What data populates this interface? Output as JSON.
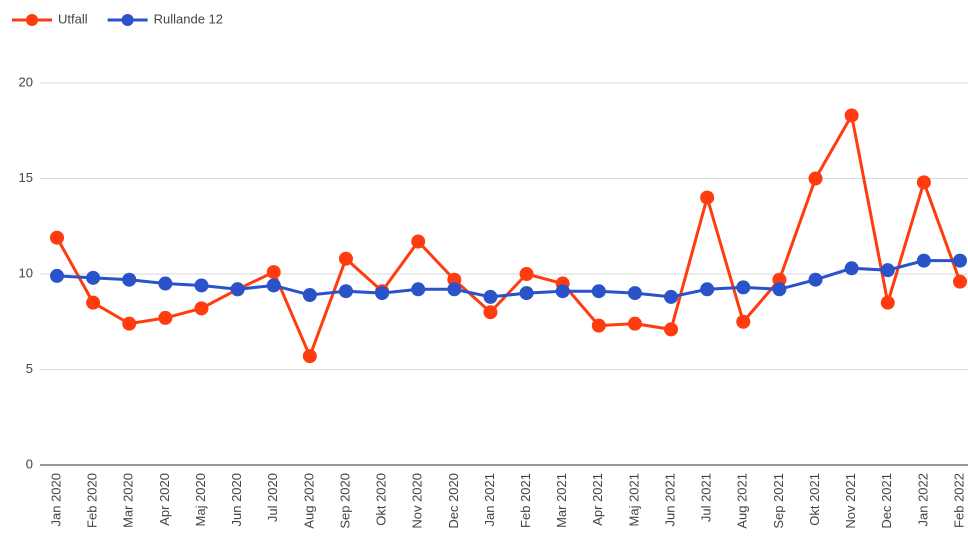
{
  "chart_data": {
    "type": "line",
    "categories": [
      "Jan 2020",
      "Feb 2020",
      "Mar 2020",
      "Apr 2020",
      "Maj 2020",
      "Jun 2020",
      "Jul 2020",
      "Aug 2020",
      "Sep 2020",
      "Okt 2020",
      "Nov 2020",
      "Dec 2020",
      "Jan 2021",
      "Feb 2021",
      "Mar 2021",
      "Apr 2021",
      "Maj 2021",
      "Jun 2021",
      "Jul 2021",
      "Aug 2021",
      "Sep 2021",
      "Okt 2021",
      "Nov 2021",
      "Dec 2021",
      "Jan 2022",
      "Feb 2022"
    ],
    "series": [
      {
        "name": "Utfall",
        "color": "#ff3b0f",
        "values": [
          11.9,
          8.5,
          7.4,
          7.7,
          8.2,
          9.2,
          10.1,
          5.7,
          10.8,
          9.1,
          11.7,
          9.7,
          8.0,
          10.0,
          9.5,
          7.3,
          7.4,
          7.1,
          14.0,
          7.5,
          9.7,
          15.0,
          18.3,
          8.5,
          14.8,
          9.6
        ]
      },
      {
        "name": "Rullande 12",
        "color": "#2a52c9",
        "values": [
          9.9,
          9.8,
          9.7,
          9.5,
          9.4,
          9.2,
          9.4,
          8.9,
          9.1,
          9.0,
          9.2,
          9.2,
          8.8,
          9.0,
          9.1,
          9.1,
          9.0,
          8.8,
          9.2,
          9.3,
          9.2,
          9.7,
          10.3,
          10.2,
          10.7,
          10.7
        ]
      }
    ],
    "ylim": [
      0,
      20
    ],
    "yticks": [
      0,
      5,
      10,
      15,
      20
    ],
    "grid": true,
    "legend": "top-left"
  }
}
